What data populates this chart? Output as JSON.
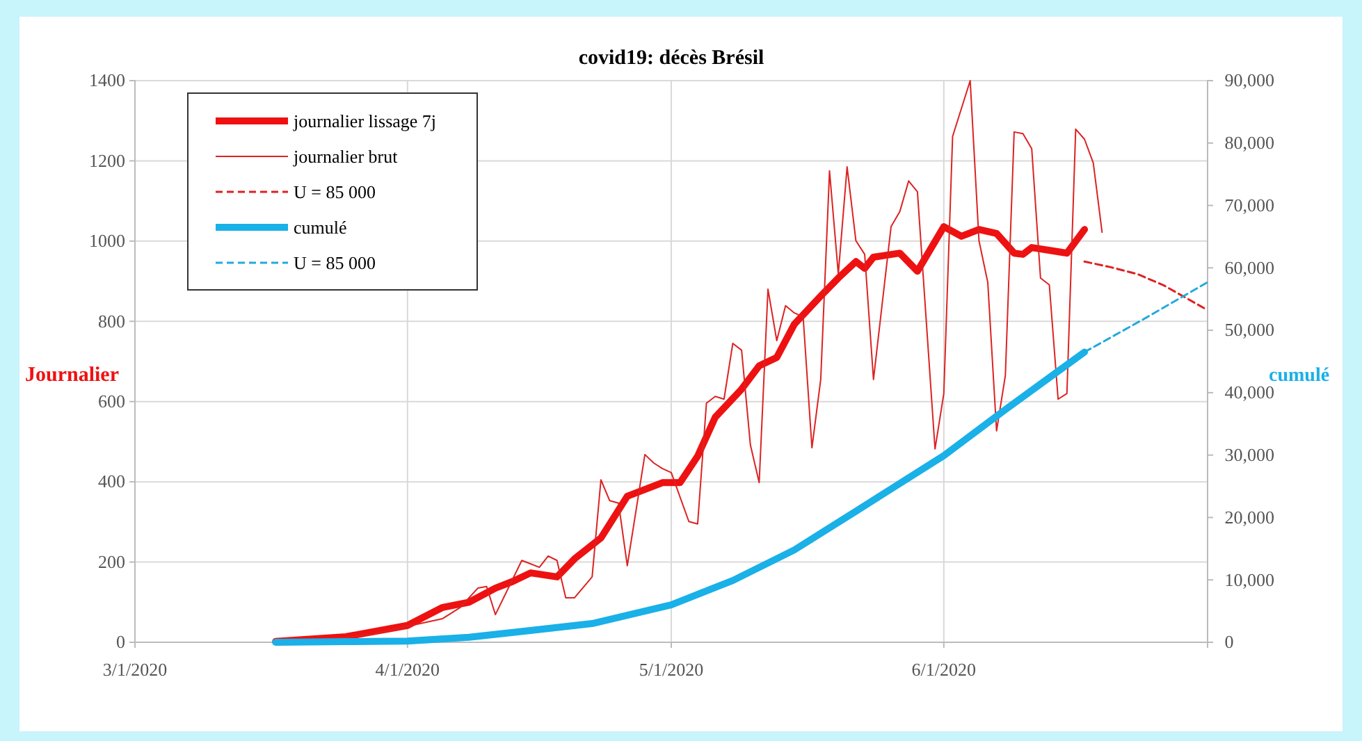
{
  "chart_data": {
    "type": "line",
    "title": "covid19: décès Brésil",
    "ylabel": "Journalier",
    "y2label": "cumulé",
    "xlim": [
      "2020-03-01",
      "2020-07-01"
    ],
    "xticks": [
      {
        "value": "2020-03-01",
        "label": "3/1/2020"
      },
      {
        "value": "2020-04-01",
        "label": "4/1/2020"
      },
      {
        "value": "2020-05-01",
        "label": "5/1/2020"
      },
      {
        "value": "2020-06-01",
        "label": "6/1/2020"
      }
    ],
    "ylim": [
      0,
      1400
    ],
    "yticks": [
      0,
      200,
      400,
      600,
      800,
      1000,
      1200,
      1400
    ],
    "y2lim": [
      0,
      90000
    ],
    "y2ticks": [
      0,
      {
        "value": 10000,
        "label": "10,000"
      },
      {
        "value": 20000,
        "label": "20,000"
      },
      {
        "value": 30000,
        "label": "30,000"
      },
      {
        "value": 40000,
        "label": "40,000"
      },
      {
        "value": 50000,
        "label": "50,000"
      },
      {
        "value": 60000,
        "label": "60,000"
      },
      {
        "value": 70000,
        "label": "70,000"
      },
      {
        "value": 80000,
        "label": "80,000"
      },
      {
        "value": 90000,
        "label": "90,000"
      }
    ],
    "grid": true,
    "legend": "top left",
    "marker": "none",
    "series": [
      {
        "name": "journalier lissage 7j",
        "color": "#ee1111",
        "line_style": "solid",
        "x": [
          "2020-03-17",
          "2020-03-25",
          "2020-04-01",
          "2020-04-05",
          "2020-04-08",
          "2020-04-11",
          "2020-04-13",
          "2020-04-15",
          "2020-04-18",
          "2020-04-20",
          "2020-04-23",
          "2020-04-26",
          "2020-04-30",
          "2020-05-02",
          "2020-05-04",
          "2020-05-06",
          "2020-05-09",
          "2020-05-11",
          "2020-05-13",
          "2020-05-15",
          "2020-05-18",
          "2020-05-20",
          "2020-05-22",
          "2020-05-23",
          "2020-05-24",
          "2020-05-27",
          "2020-05-29",
          "2020-06-01",
          "2020-06-03",
          "2020-06-05",
          "2020-06-07",
          "2020-06-09",
          "2020-06-10",
          "2020-06-11",
          "2020-06-15",
          "2020-06-17"
        ],
        "values": [
          2,
          14,
          42,
          87,
          100,
          135,
          152,
          173,
          163,
          208,
          260,
          364,
          398,
          398,
          464,
          561,
          631,
          689,
          710,
          793,
          863,
          908,
          949,
          932,
          960,
          970,
          925,
          1036,
          1012,
          1029,
          1019,
          970,
          967,
          984,
          970,
          1029
        ]
      },
      {
        "name": "journalier brut",
        "color": "#dd2222",
        "line_style": "solid",
        "x": [
          "2020-03-17",
          "2020-03-20",
          "2020-03-25",
          "2020-03-28",
          "2020-04-01",
          "2020-04-05",
          "2020-04-07",
          "2020-04-09",
          "2020-04-10",
          "2020-04-11",
          "2020-04-14",
          "2020-04-16",
          "2020-04-17",
          "2020-04-18",
          "2020-04-19",
          "2020-04-20",
          "2020-04-22",
          "2020-04-23",
          "2020-04-24",
          "2020-04-25",
          "2020-04-26",
          "2020-04-28",
          "2020-04-29",
          "2020-04-30",
          "2020-05-01",
          "2020-05-03",
          "2020-05-04",
          "2020-05-05",
          "2020-05-06",
          "2020-05-07",
          "2020-05-08",
          "2020-05-09",
          "2020-05-10",
          "2020-05-11",
          "2020-05-12",
          "2020-05-13",
          "2020-05-14",
          "2020-05-15",
          "2020-05-16",
          "2020-05-17",
          "2020-05-18",
          "2020-05-19",
          "2020-05-20",
          "2020-05-21",
          "2020-05-22",
          "2020-05-23",
          "2020-05-24",
          "2020-05-26",
          "2020-05-27",
          "2020-05-28",
          "2020-05-29",
          "2020-05-31",
          "2020-06-01",
          "2020-06-02",
          "2020-06-04",
          "2020-06-05",
          "2020-06-06",
          "2020-06-07",
          "2020-06-08",
          "2020-06-09",
          "2020-06-10",
          "2020-06-11",
          "2020-06-12",
          "2020-06-13",
          "2020-06-14",
          "2020-06-15",
          "2020-06-16",
          "2020-06-17",
          "2020-06-18",
          "2020-06-19"
        ],
        "values": [
          1,
          3,
          12,
          20,
          40,
          59,
          87,
          135,
          139,
          69,
          204,
          187,
          215,
          204,
          111,
          111,
          163,
          405,
          353,
          347,
          191,
          468,
          447,
          433,
          423,
          301,
          295,
          596,
          613,
          606,
          745,
          728,
          492,
          398,
          880,
          752,
          839,
          821,
          811,
          485,
          655,
          1175,
          918,
          1185,
          1001,
          967,
          655,
          1036,
          1074,
          1150,
          1123,
          482,
          620,
          1261,
          1400,
          1001,
          897,
          527,
          665,
          1272,
          1268,
          1230,
          908,
          891,
          606,
          620,
          1279,
          1254,
          1195,
          1022
        ]
      },
      {
        "name": "U = 85 000",
        "color": "#dd2222",
        "line_style": "dashed",
        "x": [
          "2020-06-17",
          "2020-06-20",
          "2020-06-23",
          "2020-06-26",
          "2020-07-01"
        ],
        "values": [
          949,
          935,
          918,
          890,
          828
        ]
      },
      {
        "name": "cumulé",
        "color": "#1ab0e8",
        "line_style": "solid",
        "axis": "y2",
        "x": [
          "2020-03-17",
          "2020-03-25",
          "2020-04-01",
          "2020-04-08",
          "2020-04-15",
          "2020-04-22",
          "2020-05-01",
          "2020-05-08",
          "2020-05-15",
          "2020-05-22",
          "2020-06-01",
          "2020-06-08",
          "2020-06-17"
        ],
        "values": [
          0,
          100,
          200,
          800,
          1900,
          3000,
          6000,
          9900,
          14800,
          21000,
          29900,
          37300,
          46500
        ]
      },
      {
        "name": "U = 85 000",
        "color": "#22aadd",
        "line_style": "dashed",
        "axis": "y2",
        "x": [
          "2020-06-17",
          "2020-06-24",
          "2020-07-01"
        ],
        "values": [
          46500,
          52000,
          57700
        ]
      }
    ]
  }
}
